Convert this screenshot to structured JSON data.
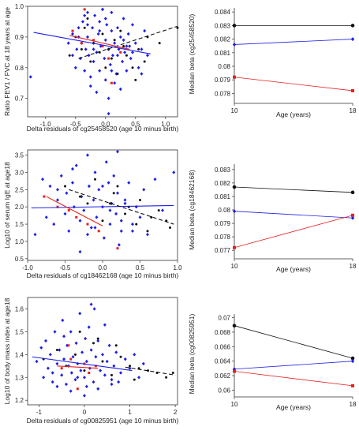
{
  "colors": {
    "black": "#111111",
    "blue": "#1f1fe6",
    "red": "#e62020"
  },
  "chart_data": [
    {
      "type": "scatter",
      "xlabel": "Delta residuals of cg25458520 (age 10 minus birth)",
      "ylabel": "Ratio FEV1 / FVC  at 18 years at age",
      "xlim": [
        -1.3,
        1.2
      ],
      "ylim": [
        0.64,
        1.0
      ],
      "xticks": [
        -1.0,
        -0.5,
        0.0,
        0.5,
        1.0
      ],
      "xtick_labels": [
        "-1.0",
        "-0.5",
        "0.0",
        "0.5",
        "1.0"
      ],
      "yticks": [
        0.7,
        0.8,
        0.9,
        1.0
      ],
      "ytick_labels": [
        "0.7",
        "0.8",
        "0.9",
        "1.0"
      ],
      "lines": [
        {
          "color": "blue",
          "dash": false,
          "x": [
            -1.2,
            0.75
          ],
          "y": [
            0.915,
            0.845
          ]
        },
        {
          "color": "black",
          "dash": true,
          "x": [
            -0.45,
            1.2
          ],
          "y": [
            0.83,
            0.935
          ]
        },
        {
          "color": "red",
          "dash": false,
          "x": [
            -0.6,
            0.4
          ],
          "y": [
            0.905,
            0.86
          ]
        }
      ],
      "groups": [
        {
          "color": "blue",
          "x": [
            -1.25,
            -0.62,
            -0.55,
            -0.5,
            -0.48,
            -0.45,
            -0.42,
            -0.4,
            -0.38,
            -0.35,
            -0.33,
            -0.3,
            -0.3,
            -0.28,
            -0.25,
            -0.22,
            -0.2,
            -0.2,
            -0.18,
            -0.15,
            -0.12,
            -0.1,
            -0.1,
            -0.08,
            -0.05,
            -0.02,
            0.0,
            0.0,
            0.02,
            0.05,
            0.08,
            0.1,
            0.1,
            0.12,
            0.15,
            0.18,
            0.2,
            0.22,
            0.25,
            0.28,
            0.3,
            0.32,
            0.35,
            0.38,
            0.4,
            0.42,
            0.45,
            0.5,
            0.55,
            0.6,
            0.65,
            0.7,
            -0.25,
            -0.15,
            0.05,
            0.15,
            -0.35,
            -0.05,
            0.25,
            0.35,
            -0.45,
            0.0,
            -0.2,
            0.1,
            0.2,
            -0.1,
            0.3,
            0.45,
            -0.3,
            -0.55,
            0.6,
            0.05
          ],
          "y": [
            0.77,
            0.88,
            0.91,
            0.8,
            0.86,
            0.93,
            0.83,
            0.88,
            0.95,
            0.79,
            0.86,
            0.9,
            0.98,
            0.84,
            0.77,
            0.93,
            0.88,
            0.82,
            0.97,
            0.85,
            0.91,
            0.79,
            0.95,
            0.87,
            0.99,
            0.83,
            0.89,
            0.76,
            0.94,
            0.86,
            0.81,
            0.92,
            0.98,
            0.84,
            0.88,
            0.78,
            0.93,
            0.86,
            0.9,
            0.82,
            0.96,
            0.85,
            0.79,
            0.91,
            0.87,
            0.83,
            0.94,
            0.88,
            0.8,
            0.86,
            0.92,
            0.84,
            0.74,
            0.72,
            0.7,
            0.75,
            0.97,
            0.99,
            0.73,
            0.87,
            0.9,
            0.96,
            0.86,
            0.79,
            0.84,
            0.92,
            0.89,
            0.85,
            0.94,
            0.84,
            0.78,
            0.65
          ]
        },
        {
          "color": "black",
          "x": [
            -0.6,
            -0.5,
            -0.4,
            -0.35,
            -0.25,
            -0.2,
            -0.1,
            -0.05,
            0.0,
            0.05,
            0.1,
            0.15,
            0.2,
            0.3,
            0.35,
            0.45,
            0.55,
            0.65,
            0.7,
            0.9,
            1.2,
            -0.3,
            0.25,
            0.5
          ],
          "y": [
            0.84,
            0.9,
            0.86,
            0.93,
            0.82,
            0.88,
            0.85,
            0.91,
            0.8,
            0.86,
            0.83,
            0.89,
            0.78,
            0.87,
            0.84,
            0.8,
            0.86,
            0.82,
            0.9,
            0.88,
            0.93,
            0.96,
            0.92,
            0.76
          ]
        },
        {
          "color": "red",
          "x": [
            -0.55,
            -0.4,
            -0.2,
            -0.05,
            0.05,
            0.25,
            0.1,
            -0.35
          ],
          "y": [
            0.92,
            0.88,
            0.89,
            0.87,
            0.83,
            0.85,
            0.75,
            0.99
          ]
        }
      ]
    },
    {
      "type": "line",
      "xlabel": "Age (years)",
      "ylabel": "Median beta (cg25458520)",
      "x": [
        10,
        18
      ],
      "ylim": [
        0.0775,
        0.0843
      ],
      "yticks": [
        0.078,
        0.079,
        0.08,
        0.081,
        0.082,
        0.083,
        0.084
      ],
      "ytick_labels": [
        "0.078",
        "0.079",
        "0.08",
        "0.081",
        "0.082",
        "0.083",
        "0.084"
      ],
      "series": [
        {
          "color": "black",
          "values": [
            0.083,
            0.083
          ]
        },
        {
          "color": "blue",
          "values": [
            0.0816,
            0.082
          ]
        },
        {
          "color": "red",
          "values": [
            0.0792,
            0.0782
          ]
        }
      ]
    },
    {
      "type": "scatter",
      "xlabel": "Delta residuals of cg18462168 (age 10 minus birth)",
      "ylabel": "Log10 of serum IgE at age18",
      "xlim": [
        -1.0,
        1.0
      ],
      "ylim": [
        0.45,
        3.65
      ],
      "xticks": [
        -1.0,
        -0.5,
        0.0,
        0.5,
        1.0
      ],
      "xtick_labels": [
        "-1.0",
        "-0.5",
        "0.0",
        "0.5",
        "1.0"
      ],
      "yticks": [
        0.5,
        1.0,
        1.5,
        2.0,
        2.5,
        3.0,
        3.5
      ],
      "ytick_labels": [
        "0.5",
        "1.0",
        "1.5",
        "2.0",
        "2.5",
        "3.0",
        "3.5"
      ],
      "lines": [
        {
          "color": "blue",
          "dash": false,
          "x": [
            -0.95,
            0.95
          ],
          "y": [
            1.97,
            2.04
          ]
        },
        {
          "color": "black",
          "dash": true,
          "x": [
            -0.45,
            0.95
          ],
          "y": [
            2.5,
            1.5
          ]
        },
        {
          "color": "red",
          "dash": false,
          "x": [
            -0.75,
            0.0
          ],
          "y": [
            2.3,
            1.45
          ]
        }
      ],
      "groups": [
        {
          "color": "blue",
          "x": [
            -0.9,
            -0.8,
            -0.75,
            -0.7,
            -0.65,
            -0.6,
            -0.55,
            -0.5,
            -0.48,
            -0.45,
            -0.4,
            -0.38,
            -0.35,
            -0.3,
            -0.28,
            -0.25,
            -0.2,
            -0.18,
            -0.15,
            -0.12,
            -0.1,
            -0.08,
            -0.05,
            0.0,
            0.02,
            0.05,
            0.08,
            0.1,
            0.12,
            0.15,
            0.18,
            0.2,
            0.22,
            0.25,
            0.3,
            0.35,
            0.4,
            0.45,
            0.5,
            0.55,
            0.6,
            0.7,
            0.8,
            0.95,
            -0.3,
            -0.2,
            0.0,
            0.2,
            -0.4,
            0.1,
            0.3,
            -0.6,
            -0.1,
            0.4,
            0.25
          ],
          "y": [
            1.2,
            2.8,
            1.7,
            2.6,
            1.5,
            2.2,
            2.9,
            1.8,
            2.4,
            1.3,
            2.7,
            2.0,
            3.2,
            1.6,
            2.3,
            1.9,
            3.5,
            2.6,
            1.4,
            2.2,
            3.0,
            1.7,
            2.5,
            2.0,
            1.1,
            3.3,
            2.7,
            1.5,
            2.1,
            2.9,
            1.8,
            2.4,
            0.9,
            1.6,
            2.2,
            2.7,
            1.3,
            2.0,
            1.7,
            2.5,
            1.2,
            2.8,
            1.9,
            3.0,
            0.7,
            1.2,
            2.6,
            3.6,
            3.1,
            1.9,
            2.1,
            2.5,
            1.4,
            1.5,
            1.3
          ]
        },
        {
          "color": "black",
          "x": [
            -0.5,
            -0.3,
            -0.1,
            0.0,
            0.1,
            0.15,
            0.3,
            0.35,
            0.45,
            0.5,
            0.6,
            0.65,
            0.75,
            0.85,
            0.9,
            0.2,
            -0.2
          ],
          "y": [
            2.6,
            2.3,
            2.8,
            1.6,
            2.1,
            2.4,
            1.8,
            2.0,
            1.5,
            2.2,
            1.3,
            1.7,
            1.9,
            1.6,
            1.4,
            2.6,
            2.1
          ]
        },
        {
          "color": "red",
          "x": [
            -0.78,
            -0.6,
            -0.45,
            -0.35,
            -0.2,
            -0.05,
            0.2
          ],
          "y": [
            2.3,
            2.0,
            1.9,
            1.7,
            1.5,
            1.3,
            0.8
          ]
        }
      ]
    },
    {
      "type": "line",
      "xlabel": "Age (years)",
      "ylabel": "Median beta (cg18462168)",
      "x": [
        10,
        18
      ],
      "ylim": [
        0.0766,
        0.0834
      ],
      "yticks": [
        0.077,
        0.078,
        0.079,
        0.08,
        0.081,
        0.082,
        0.083
      ],
      "ytick_labels": [
        "0.077",
        "0.078",
        "0.079",
        "0.08",
        "0.081",
        "0.082",
        "0.083"
      ],
      "series": [
        {
          "color": "black",
          "values": [
            0.0817,
            0.0813
          ]
        },
        {
          "color": "blue",
          "values": [
            0.0799,
            0.0794
          ]
        },
        {
          "color": "red",
          "values": [
            0.0772,
            0.0796
          ]
        }
      ]
    },
    {
      "type": "scatter",
      "xlabel": "Delta residuals of cg00825951 (age 10 minus birth)",
      "ylabel": "Log10 of body mass index at age18",
      "xlim": [
        -1.25,
        2.05
      ],
      "ylim": [
        1.18,
        1.65
      ],
      "xticks": [
        -1,
        0,
        1,
        2
      ],
      "xtick_labels": [
        "-1",
        "0",
        "1",
        "2"
      ],
      "yticks": [
        1.2,
        1.3,
        1.4,
        1.5,
        1.6
      ],
      "ytick_labels": [
        "1.2",
        "1.3",
        "1.4",
        "1.5",
        "1.6"
      ],
      "lines": [
        {
          "color": "blue",
          "dash": false,
          "x": [
            -1.15,
            1.05
          ],
          "y": [
            1.39,
            1.33
          ]
        },
        {
          "color": "black",
          "dash": true,
          "x": [
            0.9,
            2.0
          ],
          "y": [
            1.345,
            1.31
          ]
        },
        {
          "color": "red",
          "dash": false,
          "x": [
            -0.6,
            0.3
          ],
          "y": [
            1.35,
            1.34
          ]
        }
      ],
      "groups": [
        {
          "color": "blue",
          "x": [
            -1.05,
            -0.95,
            -0.9,
            -0.85,
            -0.8,
            -0.75,
            -0.7,
            -0.65,
            -0.6,
            -0.55,
            -0.5,
            -0.48,
            -0.45,
            -0.4,
            -0.38,
            -0.35,
            -0.3,
            -0.28,
            -0.25,
            -0.2,
            -0.18,
            -0.15,
            -0.1,
            -0.08,
            -0.05,
            0.0,
            0.02,
            0.05,
            0.1,
            0.12,
            0.15,
            0.2,
            0.22,
            0.25,
            0.3,
            0.35,
            0.4,
            0.45,
            0.5,
            0.55,
            0.6,
            0.65,
            0.7,
            0.8,
            0.9,
            1.0,
            1.1,
            1.2,
            1.3,
            -0.6,
            -0.3,
            0.0,
            0.3,
            0.6,
            -0.45,
            0.15,
            0.45,
            -0.15,
            0.75,
            -0.7,
            0.05
          ],
          "y": [
            1.37,
            1.43,
            1.3,
            1.46,
            1.34,
            1.4,
            1.28,
            1.5,
            1.36,
            1.42,
            1.31,
            1.55,
            1.38,
            1.27,
            1.44,
            1.35,
            1.5,
            1.32,
            1.39,
            1.29,
            1.45,
            1.36,
            1.58,
            1.33,
            1.41,
            1.3,
            1.47,
            1.37,
            1.52,
            1.34,
            1.42,
            1.28,
            1.6,
            1.39,
            1.46,
            1.33,
            1.4,
            1.31,
            1.37,
            1.44,
            1.29,
            1.35,
            1.41,
            1.32,
            1.38,
            1.34,
            1.4,
            1.3,
            1.36,
            1.26,
            1.24,
            1.22,
            1.25,
            1.27,
            1.48,
            1.62,
            1.53,
            1.3,
            1.28,
            1.32,
            1.26
          ]
        },
        {
          "color": "black",
          "x": [
            -0.9,
            -0.6,
            -0.4,
            -0.2,
            0.0,
            0.2,
            0.4,
            0.6,
            0.8,
            1.0,
            1.2,
            1.4,
            1.6,
            1.8,
            1.95,
            -0.1,
            0.3,
            0.7,
            1.1
          ],
          "y": [
            1.38,
            1.42,
            1.35,
            1.4,
            1.33,
            1.45,
            1.37,
            1.31,
            1.39,
            1.35,
            1.34,
            1.33,
            1.32,
            1.3,
            1.32,
            1.5,
            1.47,
            1.44,
            1.29
          ]
        },
        {
          "color": "red",
          "x": [
            -0.5,
            -0.3,
            -0.15,
            0.0,
            0.1,
            0.25,
            -0.35
          ],
          "y": [
            1.34,
            1.38,
            1.25,
            1.36,
            1.32,
            1.35,
            1.44
          ]
        }
      ]
    },
    {
      "type": "line",
      "xlabel": "Age (years)",
      "ylabel": "Median beta (cg00825951)",
      "x": [
        10,
        18
      ],
      "ylim": [
        0.0595,
        0.0705
      ],
      "yticks": [
        0.06,
        0.062,
        0.064,
        0.066,
        0.068,
        0.07
      ],
      "ytick_labels": [
        "0.06",
        "0.062",
        "0.064",
        "0.066",
        "0.068",
        "0.07"
      ],
      "series": [
        {
          "color": "black",
          "values": [
            0.0689,
            0.0644
          ]
        },
        {
          "color": "blue",
          "values": [
            0.0629,
            0.064
          ]
        },
        {
          "color": "red",
          "values": [
            0.0626,
            0.0606
          ]
        }
      ]
    }
  ]
}
